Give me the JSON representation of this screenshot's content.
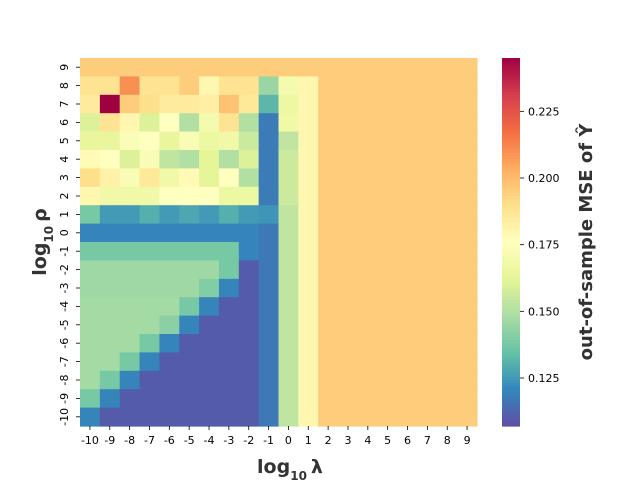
{
  "chart_data": {
    "type": "heatmap",
    "x_ticks": [
      "-10",
      "-9",
      "-8",
      "-7",
      "-6",
      "-5",
      "-4",
      "-3",
      "-2",
      "-1",
      "0",
      "1",
      "2",
      "3",
      "4",
      "5",
      "6",
      "7",
      "8",
      "9"
    ],
    "y_ticks": [
      "9",
      "8",
      "7",
      "6",
      "5",
      "4",
      "3",
      "2",
      "1",
      "0",
      "-1",
      "-2",
      "-3",
      "-4",
      "-5",
      "-6",
      "-7",
      "-8",
      "-9",
      "-10"
    ],
    "xlabel_base": "log",
    "xlabel_sub": "10",
    "xlabel_sym": "λ",
    "ylabel_base": "log",
    "ylabel_sub": "10",
    "ylabel_sym": "ρ",
    "colorbar_label": "out-of-sample MSE of Ŷ",
    "colorbar_ticks": [
      0.125,
      0.15,
      0.175,
      0.2,
      0.225
    ],
    "colorbar_tick_labels": [
      "0.125",
      "0.150",
      "0.175",
      "0.200",
      "0.225"
    ],
    "vmin": 0.107,
    "vmax": 0.245,
    "colormap": "Spectral_r",
    "values": [
      [
        0.195,
        0.195,
        0.195,
        0.195,
        0.195,
        0.195,
        0.195,
        0.195,
        0.195,
        0.195,
        0.195,
        0.195,
        0.195,
        0.195,
        0.195,
        0.195,
        0.195,
        0.195,
        0.195,
        0.195
      ],
      [
        0.188,
        0.188,
        0.21,
        0.188,
        0.188,
        0.195,
        0.18,
        0.188,
        0.188,
        0.145,
        0.17,
        0.18,
        0.195,
        0.195,
        0.195,
        0.195,
        0.195,
        0.195,
        0.195,
        0.195
      ],
      [
        0.185,
        0.245,
        0.195,
        0.19,
        0.185,
        0.185,
        0.183,
        0.198,
        0.186,
        0.132,
        0.166,
        0.18,
        0.195,
        0.195,
        0.195,
        0.195,
        0.195,
        0.195,
        0.195,
        0.195
      ],
      [
        0.16,
        0.188,
        0.18,
        0.16,
        0.176,
        0.15,
        0.17,
        0.188,
        0.15,
        0.118,
        0.168,
        0.18,
        0.195,
        0.195,
        0.195,
        0.195,
        0.195,
        0.195,
        0.195,
        0.195
      ],
      [
        0.164,
        0.164,
        0.173,
        0.176,
        0.164,
        0.172,
        0.166,
        0.168,
        0.156,
        0.118,
        0.153,
        0.18,
        0.195,
        0.195,
        0.195,
        0.195,
        0.195,
        0.195,
        0.195,
        0.195
      ],
      [
        0.178,
        0.176,
        0.16,
        0.172,
        0.153,
        0.15,
        0.162,
        0.15,
        0.16,
        0.118,
        0.156,
        0.18,
        0.195,
        0.195,
        0.195,
        0.195,
        0.195,
        0.195,
        0.195,
        0.195
      ],
      [
        0.19,
        0.182,
        0.172,
        0.186,
        0.168,
        0.178,
        0.162,
        0.176,
        0.15,
        0.118,
        0.156,
        0.18,
        0.195,
        0.195,
        0.195,
        0.195,
        0.195,
        0.195,
        0.195,
        0.195
      ],
      [
        0.18,
        0.168,
        0.168,
        0.168,
        0.176,
        0.176,
        0.176,
        0.166,
        0.166,
        0.118,
        0.156,
        0.18,
        0.195,
        0.195,
        0.195,
        0.195,
        0.195,
        0.195,
        0.195,
        0.195
      ],
      [
        0.138,
        0.125,
        0.125,
        0.13,
        0.125,
        0.128,
        0.125,
        0.13,
        0.125,
        0.124,
        0.153,
        0.18,
        0.195,
        0.195,
        0.195,
        0.195,
        0.195,
        0.195,
        0.195,
        0.195
      ],
      [
        0.12,
        0.12,
        0.12,
        0.12,
        0.12,
        0.12,
        0.12,
        0.12,
        0.12,
        0.117,
        0.153,
        0.18,
        0.195,
        0.195,
        0.195,
        0.195,
        0.195,
        0.195,
        0.195,
        0.195
      ],
      [
        0.138,
        0.138,
        0.138,
        0.138,
        0.138,
        0.138,
        0.138,
        0.138,
        0.12,
        0.117,
        0.153,
        0.18,
        0.195,
        0.195,
        0.195,
        0.195,
        0.195,
        0.195,
        0.195,
        0.195
      ],
      [
        0.146,
        0.146,
        0.146,
        0.146,
        0.146,
        0.146,
        0.146,
        0.138,
        0.11,
        0.117,
        0.153,
        0.18,
        0.195,
        0.195,
        0.195,
        0.195,
        0.195,
        0.195,
        0.195,
        0.195
      ],
      [
        0.146,
        0.146,
        0.146,
        0.146,
        0.146,
        0.146,
        0.14,
        0.12,
        0.11,
        0.117,
        0.153,
        0.18,
        0.195,
        0.195,
        0.195,
        0.195,
        0.195,
        0.195,
        0.195,
        0.195
      ],
      [
        0.147,
        0.147,
        0.147,
        0.147,
        0.147,
        0.138,
        0.12,
        0.11,
        0.11,
        0.117,
        0.153,
        0.18,
        0.195,
        0.195,
        0.195,
        0.195,
        0.195,
        0.195,
        0.195,
        0.195
      ],
      [
        0.147,
        0.147,
        0.147,
        0.147,
        0.142,
        0.12,
        0.11,
        0.11,
        0.11,
        0.117,
        0.153,
        0.18,
        0.195,
        0.195,
        0.195,
        0.195,
        0.195,
        0.195,
        0.195,
        0.195
      ],
      [
        0.147,
        0.147,
        0.147,
        0.138,
        0.12,
        0.11,
        0.11,
        0.11,
        0.11,
        0.117,
        0.153,
        0.18,
        0.195,
        0.195,
        0.195,
        0.195,
        0.195,
        0.195,
        0.195,
        0.195
      ],
      [
        0.147,
        0.147,
        0.138,
        0.12,
        0.11,
        0.11,
        0.11,
        0.11,
        0.11,
        0.117,
        0.153,
        0.18,
        0.195,
        0.195,
        0.195,
        0.195,
        0.195,
        0.195,
        0.195,
        0.195
      ],
      [
        0.147,
        0.138,
        0.12,
        0.11,
        0.11,
        0.11,
        0.11,
        0.11,
        0.11,
        0.117,
        0.153,
        0.18,
        0.195,
        0.195,
        0.195,
        0.195,
        0.195,
        0.195,
        0.195,
        0.195
      ],
      [
        0.138,
        0.12,
        0.11,
        0.11,
        0.11,
        0.11,
        0.11,
        0.11,
        0.11,
        0.117,
        0.153,
        0.18,
        0.195,
        0.195,
        0.195,
        0.195,
        0.195,
        0.195,
        0.195,
        0.195
      ],
      [
        0.12,
        0.11,
        0.11,
        0.11,
        0.11,
        0.11,
        0.11,
        0.11,
        0.11,
        0.117,
        0.153,
        0.18,
        0.195,
        0.195,
        0.195,
        0.195,
        0.195,
        0.195,
        0.195,
        0.195
      ]
    ]
  }
}
